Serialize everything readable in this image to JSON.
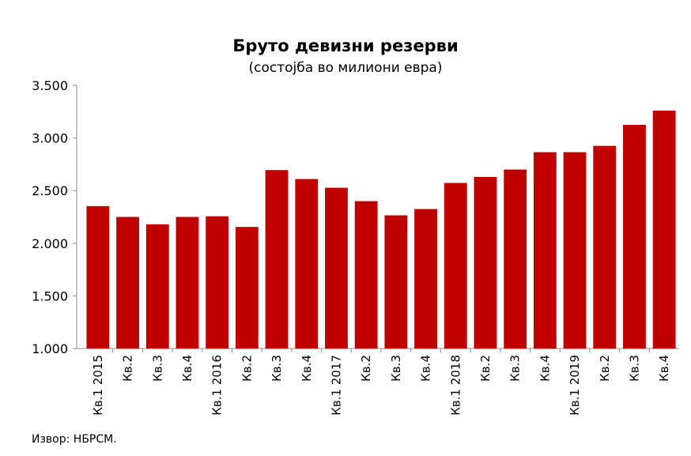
{
  "chart_data": {
    "type": "bar",
    "title": "Бруто девизни резерви",
    "subtitle": "(состојба во милиони евра)",
    "categories": [
      "Кв.1 2015",
      "Кв.2",
      "Кв.3",
      "Кв.4",
      "Кв.1 2016",
      "Кв.2",
      "Кв.3",
      "Кв.4",
      "Кв.1 2017",
      "Кв.2",
      "Кв.3",
      "Кв.4",
      "Кв.1 2018",
      "Кв.2",
      "Кв.3",
      "Кв.4",
      "Кв.1 2019",
      "Кв.2",
      "Кв.3",
      "Кв.4"
    ],
    "values": [
      2353,
      2250,
      2180,
      2250,
      2256,
      2155,
      2695,
      2610,
      2527,
      2400,
      2265,
      2325,
      2573,
      2630,
      2700,
      2865,
      2865,
      2925,
      3125,
      3260
    ],
    "ylim": [
      1000,
      3500
    ],
    "yticks": [
      1000,
      1500,
      2000,
      2500,
      3000,
      3500
    ],
    "ytick_labels": [
      "1.000",
      "1.500",
      "2.000",
      "2.500",
      "3.000",
      "3.500"
    ],
    "xlabel": "",
    "ylabel": "",
    "bar_color": "#c00000",
    "grid": false,
    "legend": "none"
  },
  "source": "Извор: НБРСМ."
}
